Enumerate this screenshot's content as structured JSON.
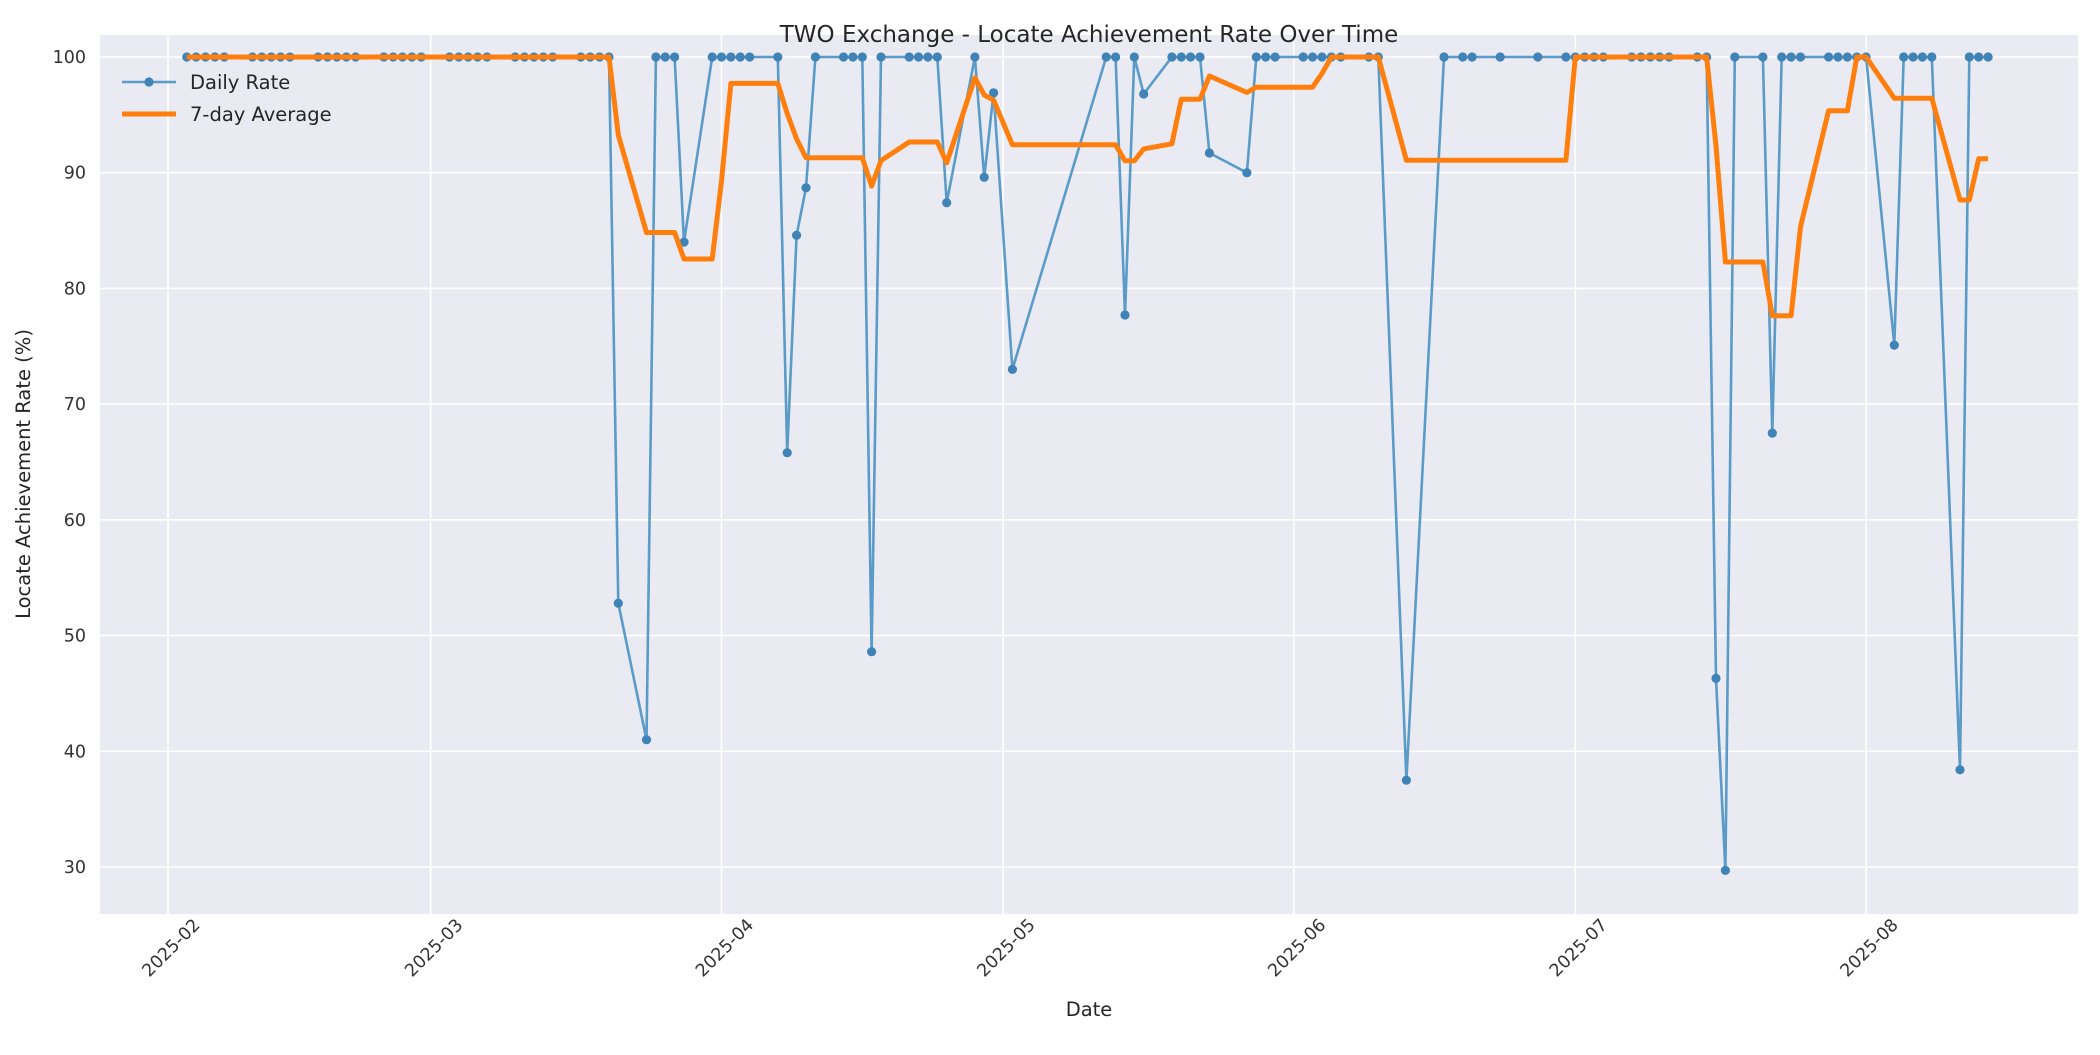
{
  "title": "TWO Exchange - Locate Achievement Rate Over Time",
  "colors": {
    "axes_background": "#eaeaf2",
    "grid": "#ffffff",
    "daily_line": "#5a9bc8",
    "daily_marker": "#3f83b7",
    "average_line": "#ff7f0e",
    "text": "#262626"
  },
  "chart_data": {
    "type": "line",
    "title": "TWO Exchange - Locate Achievement Rate Over Time",
    "xlabel": "Date",
    "ylabel": "Locate Achievement Rate (%)",
    "grid": true,
    "legend_position": "upper left",
    "ylim": [
      25.9,
      101.9
    ],
    "y_ticks": [
      30,
      40,
      50,
      60,
      70,
      80,
      90,
      100
    ],
    "x_ticks": [
      {
        "date": "2025-02-01",
        "label": "2025-02"
      },
      {
        "date": "2025-03-01",
        "label": "2025-03"
      },
      {
        "date": "2025-04-01",
        "label": "2025-04"
      },
      {
        "date": "2025-05-01",
        "label": "2025-05"
      },
      {
        "date": "2025-06-01",
        "label": "2025-06"
      },
      {
        "date": "2025-07-01",
        "label": "2025-07"
      },
      {
        "date": "2025-08-01",
        "label": "2025-08"
      }
    ],
    "series": [
      {
        "name": "Daily Rate",
        "color": "#5a9bc8",
        "marker": "circle",
        "marker_color": "#3f83b7",
        "points": [
          [
            "2025-02-03",
            100
          ],
          [
            "2025-02-04",
            100
          ],
          [
            "2025-02-05",
            100
          ],
          [
            "2025-02-06",
            100
          ],
          [
            "2025-02-07",
            100
          ],
          [
            "2025-02-10",
            100
          ],
          [
            "2025-02-11",
            100
          ],
          [
            "2025-02-12",
            100
          ],
          [
            "2025-02-13",
            100
          ],
          [
            "2025-02-14",
            100
          ],
          [
            "2025-02-17",
            100
          ],
          [
            "2025-02-18",
            100
          ],
          [
            "2025-02-19",
            100
          ],
          [
            "2025-02-20",
            100
          ],
          [
            "2025-02-21",
            100
          ],
          [
            "2025-02-24",
            100
          ],
          [
            "2025-02-25",
            100
          ],
          [
            "2025-02-26",
            100
          ],
          [
            "2025-02-27",
            100
          ],
          [
            "2025-02-28",
            100
          ],
          [
            "2025-03-03",
            100
          ],
          [
            "2025-03-04",
            100
          ],
          [
            "2025-03-05",
            100
          ],
          [
            "2025-03-06",
            100
          ],
          [
            "2025-03-07",
            100
          ],
          [
            "2025-03-10",
            100
          ],
          [
            "2025-03-11",
            100
          ],
          [
            "2025-03-12",
            100
          ],
          [
            "2025-03-13",
            100
          ],
          [
            "2025-03-14",
            100
          ],
          [
            "2025-03-17",
            100
          ],
          [
            "2025-03-18",
            100
          ],
          [
            "2025-03-19",
            100
          ],
          [
            "2025-03-20",
            100
          ],
          [
            "2025-03-21",
            52.8
          ],
          [
            "2025-03-24",
            41.0
          ],
          [
            "2025-03-25",
            100
          ],
          [
            "2025-03-26",
            100
          ],
          [
            "2025-03-27",
            100
          ],
          [
            "2025-03-28",
            84.0
          ],
          [
            "2025-03-31",
            100
          ],
          [
            "2025-04-01",
            100
          ],
          [
            "2025-04-02",
            100
          ],
          [
            "2025-04-03",
            100
          ],
          [
            "2025-04-04",
            100
          ],
          [
            "2025-04-07",
            100
          ],
          [
            "2025-04-08",
            65.8
          ],
          [
            "2025-04-09",
            84.6
          ],
          [
            "2025-04-10",
            88.7
          ],
          [
            "2025-04-11",
            100
          ],
          [
            "2025-04-14",
            100
          ],
          [
            "2025-04-15",
            100
          ],
          [
            "2025-04-16",
            100
          ],
          [
            "2025-04-17",
            48.6
          ],
          [
            "2025-04-18",
            100
          ],
          [
            "2025-04-21",
            100
          ],
          [
            "2025-04-22",
            100
          ],
          [
            "2025-04-23",
            100
          ],
          [
            "2025-04-24",
            100
          ],
          [
            "2025-04-25",
            87.4
          ],
          [
            "2025-04-28",
            100
          ],
          [
            "2025-04-29",
            89.6
          ],
          [
            "2025-04-30",
            96.9
          ],
          [
            "2025-05-02",
            73.0
          ],
          [
            "2025-05-12",
            100
          ],
          [
            "2025-05-13",
            100
          ],
          [
            "2025-05-14",
            77.7
          ],
          [
            "2025-05-15",
            100
          ],
          [
            "2025-05-16",
            96.8
          ],
          [
            "2025-05-19",
            100
          ],
          [
            "2025-05-20",
            100
          ],
          [
            "2025-05-21",
            100
          ],
          [
            "2025-05-22",
            100
          ],
          [
            "2025-05-23",
            91.7
          ],
          [
            "2025-05-27",
            90.0
          ],
          [
            "2025-05-28",
            100
          ],
          [
            "2025-05-29",
            100
          ],
          [
            "2025-05-30",
            100
          ],
          [
            "2025-06-02",
            100
          ],
          [
            "2025-06-03",
            100
          ],
          [
            "2025-06-04",
            100
          ],
          [
            "2025-06-05",
            100
          ],
          [
            "2025-06-06",
            100
          ],
          [
            "2025-06-09",
            100
          ],
          [
            "2025-06-10",
            100
          ],
          [
            "2025-06-13",
            37.5
          ],
          [
            "2025-06-17",
            100
          ],
          [
            "2025-06-19",
            100
          ],
          [
            "2025-06-20",
            100
          ],
          [
            "2025-06-23",
            100
          ],
          [
            "2025-06-27",
            100
          ],
          [
            "2025-06-30",
            100
          ],
          [
            "2025-07-01",
            100
          ],
          [
            "2025-07-02",
            100
          ],
          [
            "2025-07-03",
            100
          ],
          [
            "2025-07-04",
            100
          ],
          [
            "2025-07-07",
            100
          ],
          [
            "2025-07-08",
            100
          ],
          [
            "2025-07-09",
            100
          ],
          [
            "2025-07-10",
            100
          ],
          [
            "2025-07-11",
            100
          ],
          [
            "2025-07-14",
            100
          ],
          [
            "2025-07-15",
            100
          ],
          [
            "2025-07-16",
            46.3
          ],
          [
            "2025-07-17",
            29.7
          ],
          [
            "2025-07-18",
            100
          ],
          [
            "2025-07-21",
            100
          ],
          [
            "2025-07-22",
            67.5
          ],
          [
            "2025-07-23",
            100
          ],
          [
            "2025-07-24",
            100
          ],
          [
            "2025-07-25",
            100
          ],
          [
            "2025-07-28",
            100
          ],
          [
            "2025-07-29",
            100
          ],
          [
            "2025-07-30",
            100
          ],
          [
            "2025-07-31",
            100
          ],
          [
            "2025-08-01",
            100
          ],
          [
            "2025-08-04",
            75.1
          ],
          [
            "2025-08-05",
            100
          ],
          [
            "2025-08-06",
            100
          ],
          [
            "2025-08-07",
            100
          ],
          [
            "2025-08-08",
            100
          ],
          [
            "2025-08-11",
            38.4
          ],
          [
            "2025-08-12",
            100
          ],
          [
            "2025-08-13",
            100
          ],
          [
            "2025-08-14",
            100
          ]
        ]
      },
      {
        "name": "7-day Average",
        "color": "#ff7f0e",
        "derived_from": "Daily Rate",
        "derivation": "rolling mean of last 7 data points (min_periods=1)"
      }
    ]
  }
}
